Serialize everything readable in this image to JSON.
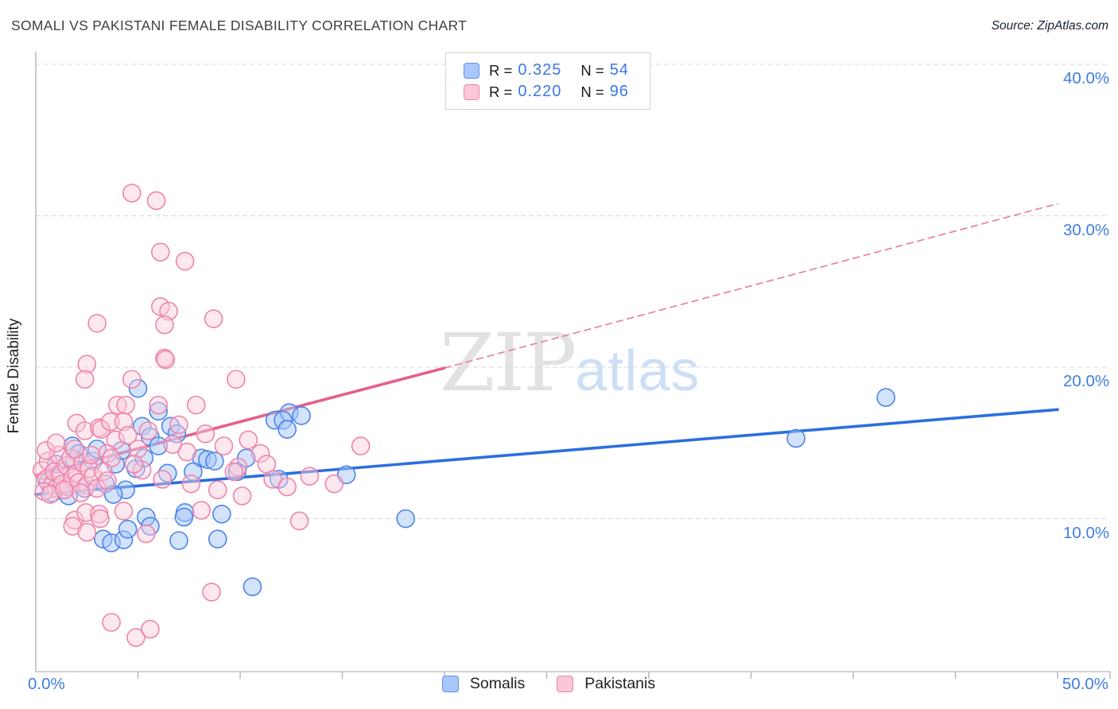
{
  "header": {
    "title": "SOMALI VS PAKISTANI FEMALE DISABILITY CORRELATION CHART",
    "source": "Source: ZipAtlas.com"
  },
  "correlation_legend": {
    "rows": [
      {
        "series": "Somalis",
        "r_label": "R =",
        "r_value": "0.325",
        "n_label": "N =",
        "n_value": "54"
      },
      {
        "series": "Pakistanis",
        "r_label": "R =",
        "r_value": "0.220",
        "n_label": "N =",
        "n_value": "96"
      }
    ]
  },
  "bottom_legend": {
    "items": [
      {
        "label": "Somalis",
        "color": "blue"
      },
      {
        "label": "Pakistanis",
        "color": "pink"
      }
    ]
  },
  "watermark": {
    "zip": "ZIP",
    "atlas": "atlas"
  },
  "chart_data": {
    "type": "scatter",
    "title": "Somali vs Pakistani Female Disability",
    "xlabel": "",
    "ylabel": "Female Disability",
    "x_range_pct": [
      0,
      50
    ],
    "y_range_pct": [
      0,
      42
    ],
    "grid": "horizontal-dashed",
    "x_tick_step_pct": 5,
    "x_corner_labels": {
      "left": "0.0%",
      "right": "50.0%"
    },
    "y_ticks": [
      {
        "value": 40,
        "label": "40.0%"
      },
      {
        "value": 30,
        "label": "30.0%"
      },
      {
        "value": 20,
        "label": "20.0%"
      },
      {
        "value": 10,
        "label": "10.0%"
      }
    ],
    "colors": {
      "somali_stroke": "#4d83ea",
      "somali_fill": "rgba(167,199,250,0.5)",
      "pakistani_stroke": "#f083a9",
      "pakistani_fill": "rgba(250,204,220,0.45)",
      "somali_trend": "#2b6ede",
      "pakistani_trend": "#e55f8d",
      "pakistani_trend_dashed": "#e87ba1",
      "gridline": "#d8d8d8",
      "axis": "#c0c0c0",
      "tick_label": "#3f7de0"
    },
    "trend_lines": [
      {
        "series": "Somalis",
        "style": "solid",
        "from": [
          0,
          11.6
        ],
        "to": [
          50,
          17.2
        ],
        "width": 3.6
      },
      {
        "series": "Pakistanis",
        "style": "solid",
        "from": [
          0,
          12.85
        ],
        "to": [
          20,
          19.95
        ],
        "width": 3.6
      },
      {
        "series": "Pakistanis",
        "style": "dashed",
        "from": [
          20,
          19.95
        ],
        "to": [
          50,
          30.8
        ],
        "width": 1.6
      }
    ],
    "series": [
      {
        "name": "Somalis",
        "R": 0.325,
        "N": 54,
        "points": [
          [
            1.8,
            14.8
          ],
          [
            5.0,
            18.6
          ],
          [
            6.0,
            17.1
          ],
          [
            5.2,
            16.1
          ],
          [
            5.6,
            15.4
          ],
          [
            6.6,
            16.1
          ],
          [
            8.1,
            14.0
          ],
          [
            8.4,
            13.9
          ],
          [
            8.75,
            13.8
          ],
          [
            7.7,
            13.1
          ],
          [
            6.45,
            13.0
          ],
          [
            9.85,
            13.1
          ],
          [
            11.7,
            16.5
          ],
          [
            11.9,
            12.6
          ],
          [
            12.4,
            17.0
          ],
          [
            12.1,
            16.5
          ],
          [
            12.3,
            15.9
          ],
          [
            13.0,
            16.8
          ],
          [
            15.2,
            12.9
          ],
          [
            18.1,
            10.0
          ],
          [
            37.2,
            15.3
          ],
          [
            41.6,
            18.0
          ],
          [
            10.6,
            5.5
          ],
          [
            3.3,
            8.65
          ],
          [
            3.7,
            8.4
          ],
          [
            4.3,
            8.6
          ],
          [
            4.5,
            9.3
          ],
          [
            5.4,
            10.1
          ],
          [
            5.6,
            9.5
          ],
          [
            7.3,
            10.4
          ],
          [
            7.25,
            10.1
          ],
          [
            7.0,
            8.55
          ],
          [
            9.1,
            10.3
          ],
          [
            8.9,
            8.65
          ],
          [
            0.6,
            12.4
          ],
          [
            1.0,
            13.6
          ],
          [
            1.4,
            12.2
          ],
          [
            1.9,
            13.9
          ],
          [
            2.4,
            12.0
          ],
          [
            2.8,
            13.8
          ],
          [
            3.4,
            12.3
          ],
          [
            3.9,
            13.6
          ],
          [
            4.4,
            11.9
          ],
          [
            4.9,
            13.3
          ],
          [
            0.8,
            11.7
          ],
          [
            1.6,
            11.5
          ],
          [
            2.1,
            14.3
          ],
          [
            3.0,
            14.6
          ],
          [
            3.8,
            11.6
          ],
          [
            4.2,
            14.5
          ],
          [
            5.3,
            14.0
          ],
          [
            6.0,
            14.8
          ],
          [
            6.9,
            15.6
          ],
          [
            10.3,
            14.0
          ]
        ]
      },
      {
        "name": "Pakistanis",
        "R": 0.22,
        "N": 96,
        "points": [
          [
            4.7,
            31.5
          ],
          [
            5.9,
            31.0
          ],
          [
            6.1,
            27.6
          ],
          [
            7.3,
            27.0
          ],
          [
            6.1,
            24.0
          ],
          [
            6.5,
            23.7
          ],
          [
            6.3,
            22.8
          ],
          [
            3.0,
            22.9
          ],
          [
            8.7,
            23.2
          ],
          [
            6.3,
            20.6
          ],
          [
            2.5,
            20.2
          ],
          [
            2.4,
            19.2
          ],
          [
            6.35,
            20.5
          ],
          [
            4.7,
            19.2
          ],
          [
            9.8,
            19.2
          ],
          [
            4.0,
            17.5
          ],
          [
            4.4,
            17.5
          ],
          [
            6.0,
            17.5
          ],
          [
            7.85,
            17.5
          ],
          [
            2.0,
            16.3
          ],
          [
            2.4,
            15.8
          ],
          [
            3.1,
            16.0
          ],
          [
            3.2,
            15.9
          ],
          [
            3.65,
            16.4
          ],
          [
            4.3,
            16.4
          ],
          [
            3.9,
            15.2
          ],
          [
            4.5,
            15.5
          ],
          [
            3.5,
            14.3
          ],
          [
            3.7,
            14.0
          ],
          [
            7.4,
            14.4
          ],
          [
            5.2,
            13.2
          ],
          [
            9.9,
            13.4
          ],
          [
            9.7,
            13.1
          ],
          [
            15.9,
            14.8
          ],
          [
            11.6,
            12.6
          ],
          [
            12.3,
            12.1
          ],
          [
            1.9,
            9.9
          ],
          [
            1.8,
            9.5
          ],
          [
            2.45,
            10.4
          ],
          [
            3.1,
            10.3
          ],
          [
            3.15,
            10.0
          ],
          [
            2.5,
            9.1
          ],
          [
            4.3,
            10.5
          ],
          [
            5.4,
            9.0
          ],
          [
            8.1,
            10.55
          ],
          [
            8.6,
            5.15
          ],
          [
            3.7,
            3.15
          ],
          [
            4.9,
            2.15
          ],
          [
            5.6,
            2.7
          ],
          [
            12.9,
            9.85
          ],
          [
            0.3,
            13.2
          ],
          [
            0.5,
            12.6
          ],
          [
            0.6,
            13.8
          ],
          [
            0.8,
            12.2
          ],
          [
            0.9,
            13.1
          ],
          [
            1.0,
            12.0
          ],
          [
            1.1,
            14.2
          ],
          [
            1.2,
            12.9
          ],
          [
            1.3,
            12.3
          ],
          [
            1.5,
            13.5
          ],
          [
            1.6,
            12.1
          ],
          [
            1.7,
            14.0
          ],
          [
            1.8,
            12.7
          ],
          [
            2.0,
            13.0
          ],
          [
            2.1,
            12.4
          ],
          [
            2.3,
            13.7
          ],
          [
            2.5,
            12.2
          ],
          [
            2.6,
            13.3
          ],
          [
            2.8,
            12.8
          ],
          [
            3.0,
            12.0
          ],
          [
            3.3,
            13.1
          ],
          [
            3.5,
            12.5
          ],
          [
            0.4,
            11.8
          ],
          [
            0.7,
            11.6
          ],
          [
            1.4,
            11.9
          ],
          [
            2.2,
            11.7
          ],
          [
            0.5,
            14.5
          ],
          [
            1.0,
            15.0
          ],
          [
            1.9,
            14.6
          ],
          [
            2.7,
            14.2
          ],
          [
            5.0,
            14.6
          ],
          [
            5.5,
            15.8
          ],
          [
            6.7,
            14.9
          ],
          [
            7.0,
            16.2
          ],
          [
            8.3,
            15.6
          ],
          [
            9.2,
            14.8
          ],
          [
            10.4,
            15.2
          ],
          [
            11.0,
            14.3
          ],
          [
            4.8,
            13.6
          ],
          [
            6.2,
            12.6
          ],
          [
            7.6,
            12.3
          ],
          [
            8.9,
            11.9
          ],
          [
            10.1,
            11.5
          ],
          [
            11.3,
            13.6
          ],
          [
            13.4,
            12.8
          ],
          [
            14.6,
            12.3
          ]
        ]
      }
    ]
  }
}
